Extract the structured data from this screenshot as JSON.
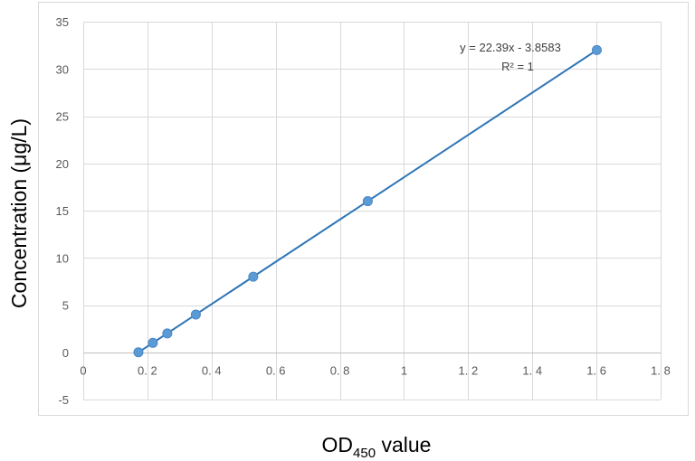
{
  "chart_data": {
    "type": "scatter",
    "xlabel": "OD",
    "xlabel_subscript": "450",
    "xlabel_suffix": " value",
    "ylabel": "Concentration (μg/L)",
    "xlim": [
      0,
      1.8
    ],
    "ylim": [
      -5,
      35
    ],
    "xticks": [
      0,
      0.2,
      0.4,
      0.6,
      0.8,
      1,
      1.2,
      1.4,
      1.6,
      1.8
    ],
    "xtick_labels": [
      "0",
      "0. 2",
      "0. 4",
      "0. 6",
      "0. 8",
      "1",
      "1. 2",
      "1. 4",
      "1. 6",
      "1. 8"
    ],
    "yticks": [
      -5,
      0,
      5,
      10,
      15,
      20,
      25,
      30,
      35
    ],
    "ytick_labels": [
      "-5",
      "0",
      "5",
      "10",
      "15",
      "20",
      "25",
      "30",
      "35"
    ],
    "grid": true,
    "series": [
      {
        "x": [
          0.172,
          0.217,
          0.262,
          0.351,
          0.53,
          0.887,
          1.601
        ],
        "y": [
          0,
          1,
          2,
          4,
          8,
          16,
          32
        ],
        "color": "#5B9BD5",
        "line_color": "#2E75B6"
      }
    ],
    "trendline": {
      "slope": 22.39,
      "intercept": -3.8583,
      "x_range": [
        0.172,
        1.601
      ],
      "equation": "y = 22.39x - 3.8583",
      "r_squared": "R² = 1"
    }
  }
}
